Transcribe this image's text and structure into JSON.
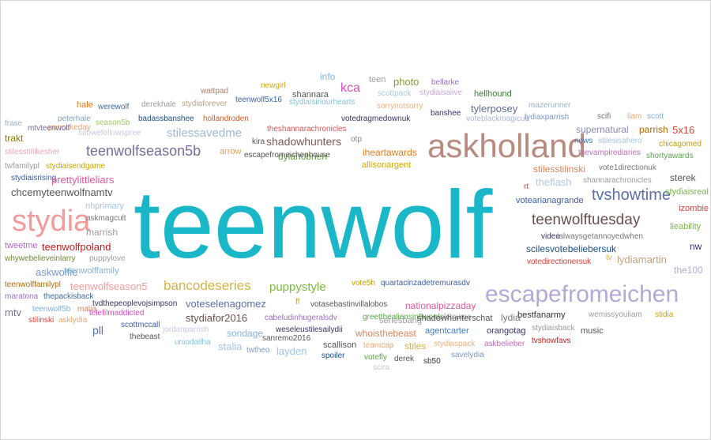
{
  "cloud": {
    "words": [
      {
        "text": "teenwolf",
        "color": "#1ab7c9"
      },
      {
        "text": "askholland",
        "color": "#b88a80"
      },
      {
        "text": "stydia",
        "color": "#f59a9b"
      },
      {
        "text": "escapefromeichen",
        "color": "#b6a8d6"
      },
      {
        "text": "tvshowtime",
        "color": "#5b6fa8"
      },
      {
        "text": "teenwolftuesday",
        "color": "#6b4f4f"
      },
      {
        "text": "teenwolfseason5b",
        "color": "#7a6a99"
      },
      {
        "text": "bancodeseries",
        "color": "#d6b347"
      },
      {
        "text": "puppystyle",
        "color": "#7dba3d"
      },
      {
        "text": "kca",
        "color": "#d94bc1"
      },
      {
        "text": "stilessavedme",
        "color": "#a3b8d6"
      },
      {
        "text": "photo",
        "color": "#8a9a33"
      },
      {
        "text": "teen",
        "color": "#9e9e9e"
      },
      {
        "text": "info",
        "color": "#7fb3e0"
      },
      {
        "text": "bellarke",
        "color": "#9b6fc4"
      },
      {
        "text": "stydiaisalive",
        "color": "#c9a7d6"
      },
      {
        "text": "scottpack",
        "color": "#a8c8e0"
      },
      {
        "text": "hellhound",
        "color": "#3d7a3d"
      },
      {
        "text": "shannara",
        "color": "#555555"
      },
      {
        "text": "newgirl",
        "color": "#d6a800"
      },
      {
        "text": "wattpad",
        "color": "#b3806b"
      },
      {
        "text": "stydiaforever",
        "color": "#c2a27a"
      },
      {
        "text": "teenwolf5x16",
        "color": "#3a5fa8"
      },
      {
        "text": "stydiaisinourhearts",
        "color": "#7fc4d6"
      },
      {
        "text": "sorrynotsorry",
        "color": "#f0b27a"
      },
      {
        "text": "hale",
        "color": "#e07b1a"
      },
      {
        "text": "werewolf",
        "color": "#3d6b99"
      },
      {
        "text": "derekhale",
        "color": "#9b9b9b"
      },
      {
        "text": "badassbanshee",
        "color": "#1a4f8a"
      },
      {
        "text": "hollandroden",
        "color": "#d95a2b"
      },
      {
        "text": "lutowefollowspree",
        "color": "#c7c7e6"
      },
      {
        "text": "peterhale",
        "color": "#7fa3c4"
      },
      {
        "text": "pancakeday",
        "color": "#f0a56b"
      },
      {
        "text": "season5b",
        "color": "#9ccc65"
      },
      {
        "text": "mtvteenwolf",
        "color": "#7a6a99"
      },
      {
        "text": "frase",
        "color": "#9bb0c4"
      },
      {
        "text": "votedragmedownuk",
        "color": "#333366"
      },
      {
        "text": "theshannarachronicles",
        "color": "#e05555"
      },
      {
        "text": "kira",
        "color": "#555555"
      },
      {
        "text": "shadowhunters",
        "color": "#7a5a5a"
      },
      {
        "text": "otp",
        "color": "#8a8a8a"
      },
      {
        "text": "banshee",
        "color": "#333366"
      },
      {
        "text": "voteblackmagicuk",
        "color": "#a7b8e0"
      },
      {
        "text": "tylerposey",
        "color": "#5a6e99"
      },
      {
        "text": "mazerunner",
        "color": "#9ab0c8"
      },
      {
        "text": "lydiaxparrish",
        "color": "#7a99cc"
      },
      {
        "text": "scifi",
        "color": "#777777"
      },
      {
        "text": "liam",
        "color": "#f0a56b"
      },
      {
        "text": "scott",
        "color": "#7fb3e0"
      },
      {
        "text": "supernatural",
        "color": "#8a8ab8"
      },
      {
        "text": "parrish",
        "color": "#b36b00"
      },
      {
        "text": "5x16",
        "color": "#e0433a"
      },
      {
        "text": "news",
        "color": "#3d7abf"
      },
      {
        "text": "stilesisahero",
        "color": "#a3c4e6"
      },
      {
        "text": "chicagomed",
        "color": "#c99d00"
      },
      {
        "text": "thevampirediaries",
        "color": "#c26bb8"
      },
      {
        "text": "shortyawards",
        "color": "#59a84a"
      },
      {
        "text": "trakt",
        "color": "#8a7a00"
      },
      {
        "text": "stilesstillikesher",
        "color": "#f0a5b6"
      },
      {
        "text": "twfamilypl",
        "color": "#9b9b9b"
      },
      {
        "text": "stydiaisendgame",
        "color": "#c9a800"
      },
      {
        "text": "stydiaisrising",
        "color": "#3a5fa8"
      },
      {
        "text": "prettylittleliars",
        "color": "#e05a9b"
      },
      {
        "text": "chcemyteenwolfnamtv",
        "color": "#555555"
      },
      {
        "text": "iheartawards",
        "color": "#e07b1a"
      },
      {
        "text": "allisonargent",
        "color": "#d6a800"
      },
      {
        "text": "dylanobrien",
        "color": "#6b9b3d"
      },
      {
        "text": "escapefromeichenhouse",
        "color": "#555555"
      },
      {
        "text": "arrow",
        "color": "#e0a56b"
      },
      {
        "text": "stilesstilinski",
        "color": "#e0855a"
      },
      {
        "text": "vote1directionuk",
        "color": "#777777"
      },
      {
        "text": "sterek",
        "color": "#555555"
      },
      {
        "text": "theflash",
        "color": "#b3c7e6"
      },
      {
        "text": "shannarachronicles",
        "color": "#9b9b9b"
      },
      {
        "text": "stydiaisreal",
        "color": "#7ab84a"
      },
      {
        "text": "rt",
        "color": "#e0433a"
      },
      {
        "text": "nhprimary",
        "color": "#a3c4e6"
      },
      {
        "text": "askmagcult",
        "color": "#777777"
      },
      {
        "text": "marrish",
        "color": "#9b9b9b"
      },
      {
        "text": "votearianagrande",
        "color": "#3a5fa8"
      },
      {
        "text": "izombie",
        "color": "#e0433a"
      },
      {
        "text": "lieability",
        "color": "#7ab84a"
      },
      {
        "text": "video",
        "color": "#333366"
      },
      {
        "text": "ialwaysgetannoyedwhen",
        "color": "#777777"
      },
      {
        "text": "tweetme",
        "color": "#b36bc4"
      },
      {
        "text": "teenwolfpoland",
        "color": "#c41a1a"
      },
      {
        "text": "scilesvotebeliebersuk",
        "color": "#1a4f8a"
      },
      {
        "text": "nw",
        "color": "#333366"
      },
      {
        "text": "whywebelieveinlarry",
        "color": "#6b8a33"
      },
      {
        "text": "puppylove",
        "color": "#9b9b9b"
      },
      {
        "text": "askwolfie",
        "color": "#7a99cc"
      },
      {
        "text": "teenwolffamily",
        "color": "#7fb3e0"
      },
      {
        "text": "lydiamartin",
        "color": "#c2a27a"
      },
      {
        "text": "tv",
        "color": "#d6b347"
      },
      {
        "text": "votedirectionersuk",
        "color": "#e0433a"
      },
      {
        "text": "the100",
        "color": "#b6a8d6"
      },
      {
        "text": "teenwolffamilypl",
        "color": "#b36b00"
      },
      {
        "text": "teenwolfseason5",
        "color": "#f59a9b"
      },
      {
        "text": "vote5h",
        "color": "#c99d00"
      },
      {
        "text": "quartacinzadetremurasdv",
        "color": "#3a5fa8"
      },
      {
        "text": "maratona",
        "color": "#9b6fc4"
      },
      {
        "text": "thepackisback",
        "color": "#3d6b99"
      },
      {
        "text": "tvdthepeoplevojsimpson",
        "color": "#333366"
      },
      {
        "text": "voteselenagomez",
        "color": "#5b6fa8"
      },
      {
        "text": "ff",
        "color": "#c9a800"
      },
      {
        "text": "votasebastinvillalobos",
        "color": "#555555"
      },
      {
        "text": "nationalpizzaday",
        "color": "#e05a9b"
      },
      {
        "text": "greetthealiensin5words",
        "color": "#59a84a"
      },
      {
        "text": "kitsume",
        "color": "#9b9b9b"
      },
      {
        "text": "mtv",
        "color": "#7a6a99"
      },
      {
        "text": "teenwolf5b",
        "color": "#7fb3e0"
      },
      {
        "text": "malia",
        "color": "#e0855a"
      },
      {
        "text": "telefilmaddicted",
        "color": "#d94bc1"
      },
      {
        "text": "stydiafor2016",
        "color": "#6b4f4f"
      },
      {
        "text": "seriesbang",
        "color": "#9b9b9b"
      },
      {
        "text": "shadowhunterschat",
        "color": "#555555"
      },
      {
        "text": "bestfanarmy",
        "color": "#333333"
      },
      {
        "text": "wemissyouliam",
        "color": "#9b9b9b"
      },
      {
        "text": "stidia",
        "color": "#c9a800"
      },
      {
        "text": "stilinski",
        "color": "#e0433a"
      },
      {
        "text": "asklydia",
        "color": "#f0a56b"
      },
      {
        "text": "scottmccall",
        "color": "#3a5fa8"
      },
      {
        "text": "pll",
        "color": "#5b6fa8"
      },
      {
        "text": "cabeludinhugeralsdv",
        "color": "#9b6fc4"
      },
      {
        "text": "lydia",
        "color": "#777777"
      },
      {
        "text": "jordanparrish",
        "color": "#c7c7e6"
      },
      {
        "text": "thebeast",
        "color": "#555555"
      },
      {
        "text": "sondage",
        "color": "#7fb3e0"
      },
      {
        "text": "weseleustilesailydii",
        "color": "#333366"
      },
      {
        "text": "whoisthebeast",
        "color": "#e0855a"
      },
      {
        "text": "agentcarter",
        "color": "#3d7abf"
      },
      {
        "text": "orangotag",
        "color": "#333366"
      },
      {
        "text": "stydiaisback",
        "color": "#9b9b9b"
      },
      {
        "text": "music",
        "color": "#555555"
      },
      {
        "text": "uniodailha",
        "color": "#7fc4d6"
      },
      {
        "text": "stalia",
        "color": "#a3c4e6"
      },
      {
        "text": "sanremo2016",
        "color": "#555555"
      },
      {
        "text": "scallison",
        "color": "#555555"
      },
      {
        "text": "teamcap",
        "color": "#f0a56b"
      },
      {
        "text": "stiles",
        "color": "#d6b347"
      },
      {
        "text": "stydiaspack",
        "color": "#f0b27a"
      },
      {
        "text": "askbelieber",
        "color": "#c26bb8"
      },
      {
        "text": "tvshowfavs",
        "color": "#c41a1a"
      },
      {
        "text": "twtheo",
        "color": "#7a99cc"
      },
      {
        "text": "layden",
        "color": "#a3c4e6"
      },
      {
        "text": "spoiler",
        "color": "#1a4f8a"
      },
      {
        "text": "votefly",
        "color": "#59a84a"
      },
      {
        "text": "derek",
        "color": "#555555"
      },
      {
        "text": "sb50",
        "color": "#333333"
      },
      {
        "text": "savelydia",
        "color": "#7a99cc"
      },
      {
        "text": "scira",
        "color": "#c7c7c7"
      }
    ]
  }
}
